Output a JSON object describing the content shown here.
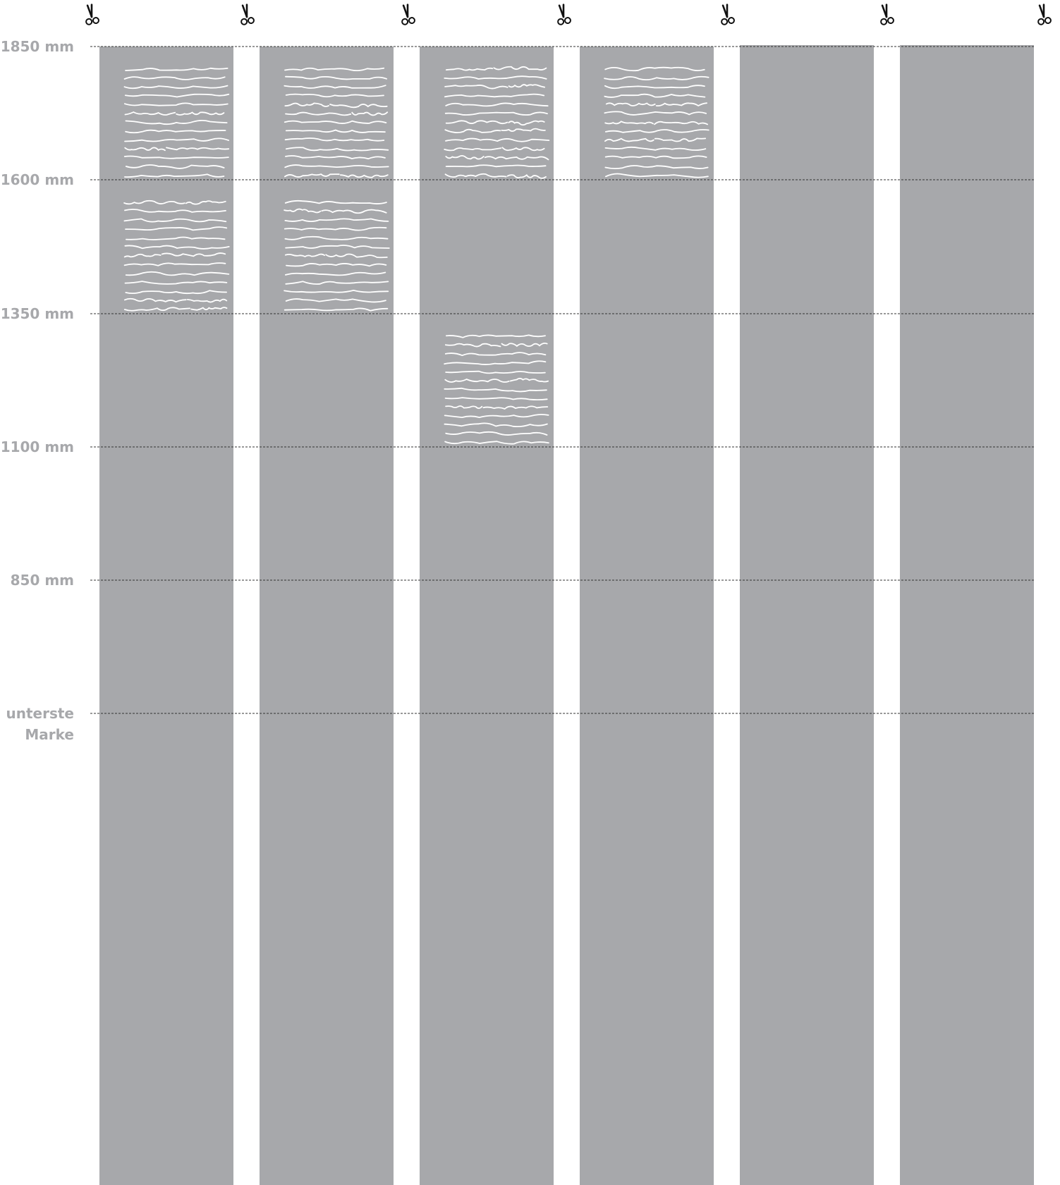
{
  "diagram": {
    "height_marks": [
      {
        "id": "1850",
        "lines": [
          "1850 mm"
        ]
      },
      {
        "id": "1600",
        "lines": [
          "1600 mm"
        ]
      },
      {
        "id": "1350",
        "lines": [
          "1350 mm"
        ]
      },
      {
        "id": "1100",
        "lines": [
          "1100 mm"
        ]
      },
      {
        "id": "850",
        "lines": [
          "850 mm"
        ]
      },
      {
        "id": "lowest",
        "lines": [
          "unterste",
          "Marke"
        ]
      }
    ],
    "strips": [
      {
        "name": "strip-1",
        "filled_sections": [
          "1850-1600",
          "1600-1350"
        ]
      },
      {
        "name": "strip-2",
        "filled_sections": [
          "1850-1600",
          "1600-1350"
        ]
      },
      {
        "name": "strip-3",
        "filled_sections": [
          "1850-1600",
          "1350-1100"
        ]
      },
      {
        "name": "strip-4",
        "filled_sections": [
          "1850-1600"
        ]
      },
      {
        "name": "strip-5",
        "filled_sections": []
      },
      {
        "name": "strip-6",
        "filled_sections": []
      }
    ],
    "cut_marker_icon": "scissors-icon",
    "colors": {
      "strip": "#a7a8ab",
      "writing": "#ffffff",
      "label": "#a7a8ab",
      "guide_line": "#333333",
      "scissors": "#111111"
    }
  }
}
